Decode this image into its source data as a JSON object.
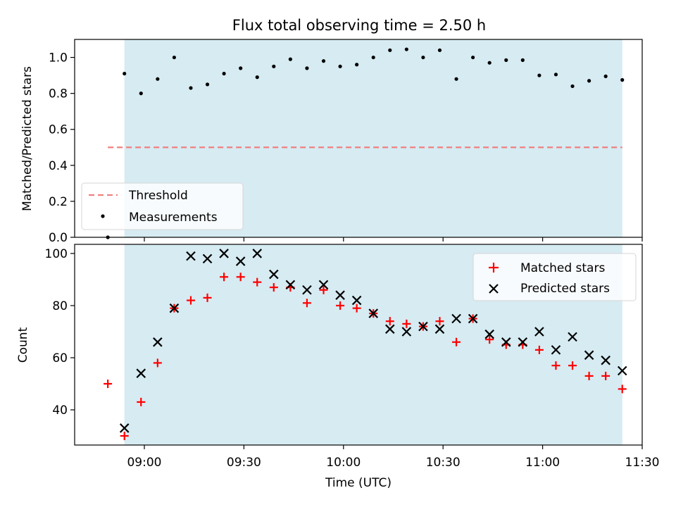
{
  "title": "Flux total observing time = 2.50 h",
  "colors": {
    "observing_span": "#add8e6",
    "threshold": "#f08080",
    "measurement": "#000000",
    "matched": "#ff0000",
    "predicted": "#000000"
  },
  "chart_data": [
    {
      "type": "scatter",
      "ylabel": "Matched/Predicted stars",
      "ylim": [
        0,
        1.1
      ],
      "y_ticks": [
        0.0,
        0.2,
        0.4,
        0.6,
        0.8,
        1.0
      ],
      "y_tick_labels": [
        "0.0",
        "0.2",
        "0.4",
        "0.6",
        "0.8",
        "1.0"
      ],
      "observing_span": [
        "08:54",
        "11:24"
      ],
      "threshold": {
        "y": 0.5,
        "x": [
          "08:49",
          "11:24"
        ]
      },
      "legend": {
        "position": "lower-left",
        "entries": [
          "Threshold",
          "Measurements"
        ]
      },
      "series": [
        {
          "name": "Measurements",
          "x": [
            "08:49",
            "08:54",
            "08:59",
            "09:04",
            "09:09",
            "09:14",
            "09:19",
            "09:24",
            "09:29",
            "09:34",
            "09:39",
            "09:44",
            "09:49",
            "09:54",
            "09:59",
            "10:04",
            "10:09",
            "10:14",
            "10:19",
            "10:24",
            "10:29",
            "10:34",
            "10:39",
            "10:44",
            "10:49",
            "10:54",
            "10:59",
            "11:04",
            "11:09",
            "11:14",
            "11:19",
            "11:24"
          ],
          "y": [
            0.0,
            0.91,
            0.8,
            0.88,
            1.0,
            0.83,
            0.85,
            0.91,
            0.94,
            0.89,
            0.95,
            0.99,
            0.94,
            0.98,
            0.95,
            0.96,
            1.0,
            1.04,
            1.045,
            1.0,
            1.04,
            0.88,
            1.0,
            0.97,
            0.985,
            0.985,
            0.9,
            0.905,
            0.84,
            0.87,
            0.895,
            0.875
          ]
        }
      ]
    },
    {
      "type": "scatter",
      "xlabel": "Time (UTC)",
      "ylabel": "Count",
      "ylim": [
        26.5,
        103.5
      ],
      "xlim": [
        "08:39",
        "11:30"
      ],
      "x_ticks": [
        "09:00",
        "09:30",
        "10:00",
        "10:30",
        "11:00",
        "11:30"
      ],
      "y_ticks": [
        40,
        60,
        80,
        100
      ],
      "y_tick_labels": [
        "40",
        "60",
        "80",
        "100"
      ],
      "observing_span": [
        "08:54",
        "11:24"
      ],
      "legend": {
        "position": "upper-right",
        "entries": [
          "Matched stars",
          "Predicted stars"
        ]
      },
      "series": [
        {
          "name": "Matched stars",
          "x": [
            "08:49",
            "08:54",
            "08:59",
            "09:04",
            "09:09",
            "09:14",
            "09:19",
            "09:24",
            "09:29",
            "09:34",
            "09:39",
            "09:44",
            "09:49",
            "09:54",
            "09:59",
            "10:04",
            "10:09",
            "10:14",
            "10:19",
            "10:24",
            "10:29",
            "10:34",
            "10:39",
            "10:44",
            "10:49",
            "10:54",
            "10:59",
            "11:04",
            "11:09",
            "11:14",
            "11:19",
            "11:24"
          ],
          "y": [
            50,
            30,
            43,
            58,
            79,
            82,
            83,
            91,
            91,
            89,
            87,
            87,
            81,
            86,
            80,
            79,
            77,
            74,
            73,
            72,
            74,
            66,
            75,
            67,
            65,
            65,
            63,
            57,
            57,
            53,
            53,
            48
          ]
        },
        {
          "name": "Predicted stars",
          "x": [
            "08:54",
            "08:59",
            "09:04",
            "09:09",
            "09:14",
            "09:19",
            "09:24",
            "09:29",
            "09:34",
            "09:39",
            "09:44",
            "09:49",
            "09:54",
            "09:59",
            "10:04",
            "10:09",
            "10:14",
            "10:19",
            "10:24",
            "10:29",
            "10:34",
            "10:39",
            "10:44",
            "10:49",
            "10:54",
            "10:59",
            "11:04",
            "11:09",
            "11:14",
            "11:19",
            "11:24"
          ],
          "y": [
            33,
            54,
            66,
            79,
            99,
            98,
            100,
            97,
            100,
            92,
            88,
            86,
            88,
            84,
            82,
            77,
            71,
            70,
            72,
            71,
            75,
            75,
            69,
            66,
            66,
            70,
            63,
            68,
            61,
            59,
            55
          ]
        }
      ]
    }
  ]
}
